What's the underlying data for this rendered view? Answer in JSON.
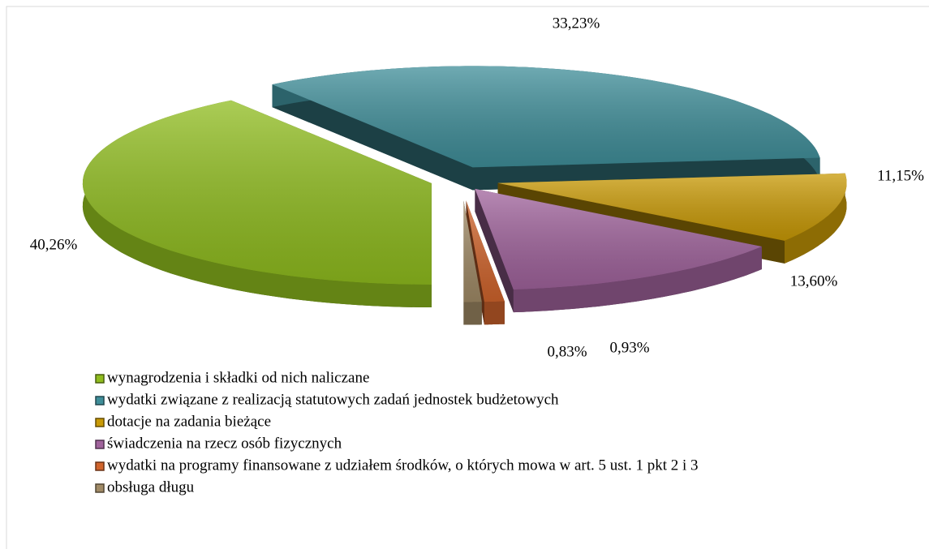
{
  "chart_data": {
    "type": "pie3d",
    "categories": [
      "wynagrodzenia i składki od nich naliczane",
      "wydatki związane z realizacją statutowych zadań jednostek budżetowych",
      "dotacje na zadania bieżące",
      "świadczenia na rzecz osób fizycznych",
      "wydatki na programy finansowane z udziałem środków, o których mowa w art. 5 ust. 1 pkt 2 i 3",
      "obsługa długu"
    ],
    "values": [
      40.26,
      33.23,
      11.15,
      13.6,
      0.93,
      0.83
    ],
    "value_labels": [
      "40,26%",
      "33,23%",
      "11,15%",
      "13,60%",
      "0,93%",
      "0,83%"
    ],
    "colors": [
      "#8fbc1e",
      "#3f8e99",
      "#c99a06",
      "#a0639c",
      "#d0642c",
      "#a08a66"
    ],
    "legend": "bottom"
  }
}
